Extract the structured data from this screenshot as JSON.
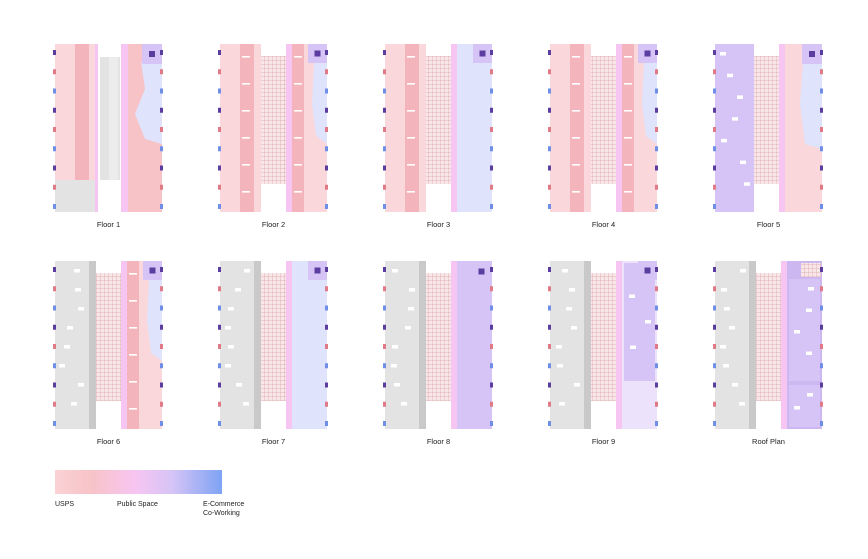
{
  "colors": {
    "usps": "#f7c3c7",
    "usps_light": "#fad7da",
    "usps_dark": "#f3b5bb",
    "public": "#f7c5f2",
    "ecom": "#dfe3fb",
    "ecom_purple": "#d6c4f6",
    "grey": "#e3e3e3",
    "grey_dark": "#c9c9c9",
    "grid": "#c9848a",
    "grid_bg": "#f9e6e8",
    "accent": "#5b3c9f",
    "tile": "#cdb7f0"
  },
  "floors": [
    {
      "label": "Floor 1",
      "variant": "f1"
    },
    {
      "label": "Floor 2",
      "variant": "f2"
    },
    {
      "label": "Floor 3",
      "variant": "f3"
    },
    {
      "label": "Floor 4",
      "variant": "f4"
    },
    {
      "label": "Floor 5",
      "variant": "f5"
    },
    {
      "label": "Floor 6",
      "variant": "f6"
    },
    {
      "label": "Floor 7",
      "variant": "f7"
    },
    {
      "label": "Floor 8",
      "variant": "f8"
    },
    {
      "label": "Floor 9",
      "variant": "f9"
    },
    {
      "label": "Roof Plan",
      "variant": "roof"
    }
  ],
  "legend": {
    "usps": "USPS",
    "public_space": "Public Space",
    "ecommerce_line1": "E-Commerce",
    "ecommerce_line2": "Co-Working"
  }
}
